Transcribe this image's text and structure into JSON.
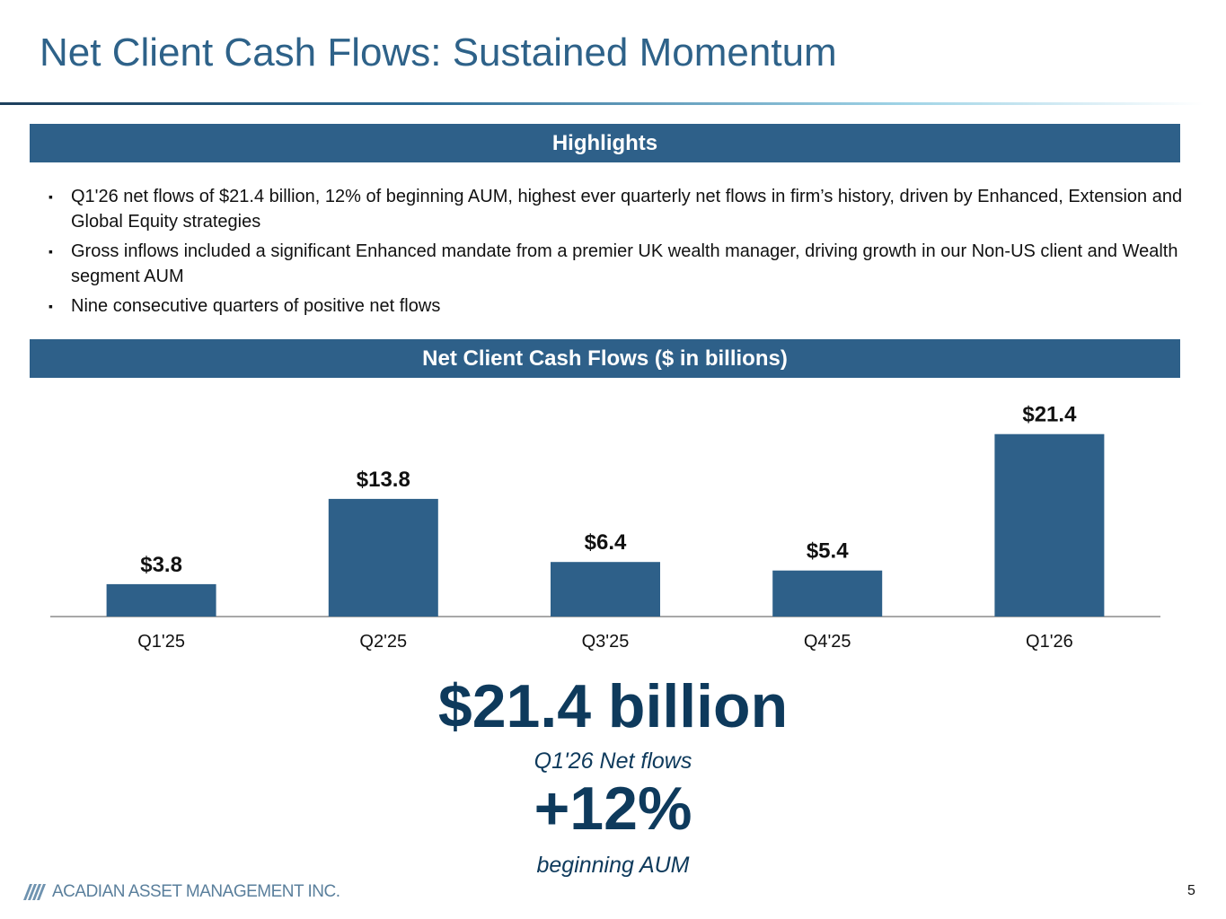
{
  "title": "Net Client Cash Flows: Sustained Momentum",
  "highlights": {
    "header": "Highlights",
    "bullet_mark": "▪",
    "items": [
      "Q1'26 net flows of $21.4 billion, 12% of beginning AUM, highest ever quarterly net flows in firm’s history, driven by Enhanced, Extension and Global Equity strategies",
      "Gross inflows included a significant Enhanced mandate from a premier UK wealth manager, driving growth in our Non-US client and Wealth segment AUM",
      "Nine consecutive quarters of positive net flows"
    ]
  },
  "chart_section": {
    "header": "Net Client Cash Flows ($ in billions)"
  },
  "chart_data": {
    "type": "bar",
    "title": "Net Client Cash Flows ($ in billions)",
    "categories": [
      "Q1'25",
      "Q2'25",
      "Q3'25",
      "Q4'25",
      "Q1'26"
    ],
    "values": [
      3.8,
      13.8,
      6.4,
      5.4,
      21.4
    ],
    "value_labels": [
      "$3.8",
      "$13.8",
      "$6.4",
      "$5.4",
      "$21.4"
    ],
    "ylim": [
      0,
      24
    ],
    "grid": false,
    "legend": "none",
    "bar_color": "#2e6089"
  },
  "callout": {
    "amount": "$21.4 billion",
    "amount_label": "Q1'26 Net flows",
    "percent": "+12%",
    "percent_label": "beginning AUM"
  },
  "footer": {
    "logo_text": "ACADIAN ASSET MANAGEMENT INC.",
    "logo_icon": "acadian-stripes-logo-icon",
    "page_number": "5"
  },
  "colors": {
    "accent": "#2e6089",
    "title": "#2e6289",
    "callout": "#0e3a5c"
  }
}
